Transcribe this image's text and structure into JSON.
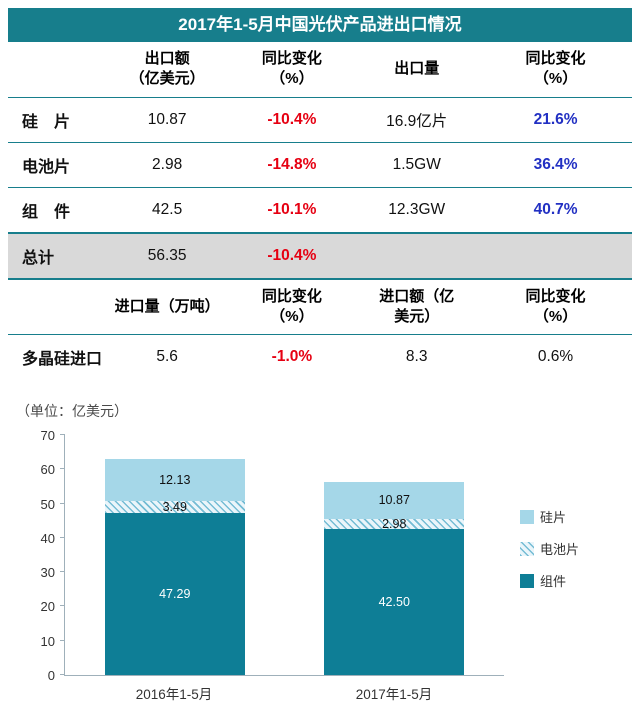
{
  "title": "2017年1-5月中国光伏产品进出口情况",
  "unit_note": "（单位：亿美元）",
  "colors": {
    "teal": "#177e8c",
    "negative_red": "#e60012",
    "positive_blue": "#2230c3",
    "total_row_bg": "#d9d9d9",
    "bar_dark_teal": "#0e7e96",
    "bar_light_blue": "#a5d7e8",
    "hatch_line": "#6eb9d2"
  },
  "table": {
    "export_header": {
      "c0": "",
      "c1": "出口额\n（亿美元）",
      "c2": "同比变化\n（%）",
      "c3": "出口量",
      "c4": "同比变化\n（%）"
    },
    "export_rows": [
      {
        "name": "硅　片",
        "export_value": "10.87",
        "yoy": "-10.4%",
        "volume": "16.9亿片",
        "volume_yoy": "21.6%"
      },
      {
        "name": "电池片",
        "export_value": "2.98",
        "yoy": "-14.8%",
        "volume": "1.5GW",
        "volume_yoy": "36.4%"
      },
      {
        "name": "组　件",
        "export_value": "42.5",
        "yoy": "-10.1%",
        "volume": "12.3GW",
        "volume_yoy": "40.7%"
      }
    ],
    "total_row": {
      "name": "总计",
      "export_value": "56.35",
      "yoy": "-10.4%",
      "volume": "",
      "volume_yoy": ""
    },
    "import_header": {
      "c0": "",
      "c1": "进口量（万吨）",
      "c2": "同比变化\n（%）",
      "c3": "进口额（亿\n美元）",
      "c4": "同比变化\n（%）"
    },
    "import_rows": [
      {
        "name": "多晶硅进口",
        "import_volume": "5.6",
        "yoy": "-1.0%",
        "import_value": "8.3",
        "value_yoy": "0.6%"
      }
    ]
  },
  "chart_data": {
    "type": "bar",
    "stacked": true,
    "title": "",
    "unit_note": "（单位：亿美元）",
    "categories": [
      "2016年1-5月",
      "2017年1-5月"
    ],
    "series": [
      {
        "name": "组件",
        "values": [
          47.29,
          42.5
        ],
        "labels": [
          "47.29",
          "42.50"
        ],
        "color": "#0e7e96",
        "label_color": "#ffffff",
        "pattern": "solid"
      },
      {
        "name": "电池片",
        "values": [
          3.49,
          2.98
        ],
        "labels": [
          "3.49",
          "2.98"
        ],
        "color": "#eaf5fa",
        "label_color": "#111111",
        "pattern": "hatch"
      },
      {
        "name": "硅片",
        "values": [
          12.13,
          10.87
        ],
        "labels": [
          "12.13",
          "10.87"
        ],
        "color": "#a5d7e8",
        "label_color": "#111111",
        "pattern": "solid"
      }
    ],
    "xlabel": "",
    "ylabel": "",
    "ylim": [
      0,
      70
    ],
    "yticks": [
      0,
      10,
      20,
      30,
      40,
      50,
      60,
      70
    ],
    "grid": false,
    "legend": [
      "硅片",
      "电池片",
      "组件"
    ],
    "legend_position": "right"
  }
}
